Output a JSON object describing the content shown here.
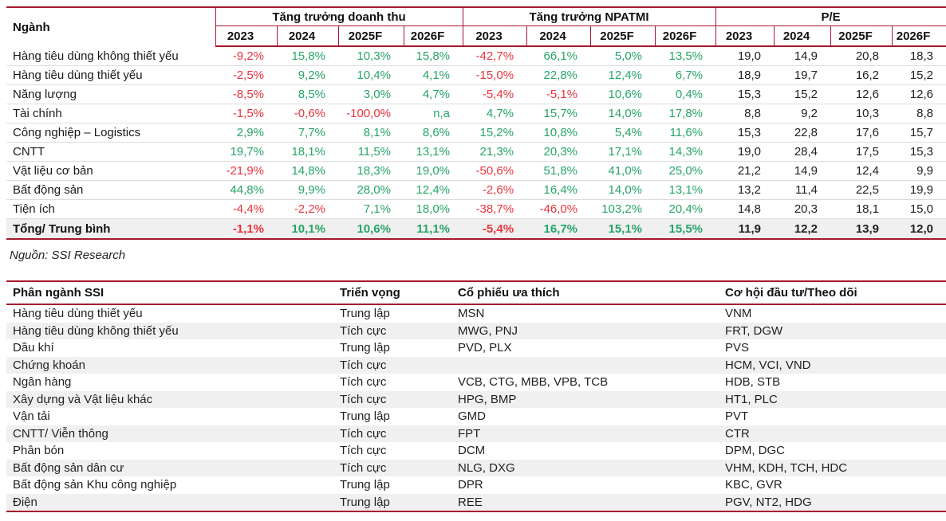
{
  "colors": {
    "border_red": "#a6192e",
    "positive_green": "#27a567",
    "negative_red": "#e8353d",
    "stripe_gray": "#f0f0f0"
  },
  "source_note": "Nguồn: SSI Research",
  "sector_table": {
    "first_col_header": "Ngành",
    "groups": [
      "Tăng trưởng doanh thu",
      "Tăng trưởng NPATMI",
      "P/E"
    ],
    "years": [
      "2023",
      "2024",
      "2025F",
      "2026F"
    ],
    "rows": [
      {
        "name": "Hàng tiêu dùng không thiết yếu",
        "rev": [
          "-9,2%",
          "15,8%",
          "10,3%",
          "15,8%"
        ],
        "npatmi": [
          "-42,7%",
          "66,1%",
          "5,0%",
          "13,5%"
        ],
        "pe": [
          "19,0",
          "14,9",
          "20,8",
          "18,3"
        ]
      },
      {
        "name": "Hàng tiêu dùng thiết yếu",
        "rev": [
          "-2,5%",
          "9,2%",
          "10,4%",
          "4,1%"
        ],
        "npatmi": [
          "-15,0%",
          "22,8%",
          "12,4%",
          "6,7%"
        ],
        "pe": [
          "18,9",
          "19,7",
          "16,2",
          "15,2"
        ]
      },
      {
        "name": "Năng lượng",
        "rev": [
          "-8,5%",
          "8,5%",
          "3,0%",
          "4,7%"
        ],
        "npatmi": [
          "-5,4%",
          "-5,1%",
          "10,6%",
          "0,4%"
        ],
        "pe": [
          "15,3",
          "15,2",
          "12,6",
          "12,6"
        ]
      },
      {
        "name": "Tài chính",
        "rev": [
          "-1,5%",
          "-0,6%",
          "-100,0%",
          "n,a"
        ],
        "npatmi": [
          "4,7%",
          "15,7%",
          "14,0%",
          "17,8%"
        ],
        "pe": [
          "8,8",
          "9,2",
          "10,3",
          "8,8"
        ]
      },
      {
        "name": "Công nghiệp – Logistics",
        "rev": [
          "2,9%",
          "7,7%",
          "8,1%",
          "8,6%"
        ],
        "npatmi": [
          "15,2%",
          "10,8%",
          "5,4%",
          "11,6%"
        ],
        "pe": [
          "15,3",
          "22,8",
          "17,6",
          "15,7"
        ]
      },
      {
        "name": "CNTT",
        "rev": [
          "19,7%",
          "18,1%",
          "11,5%",
          "13,1%"
        ],
        "npatmi": [
          "21,3%",
          "20,3%",
          "17,1%",
          "14,3%"
        ],
        "pe": [
          "19,0",
          "28,4",
          "17,5",
          "15,3"
        ]
      },
      {
        "name": "Vật liệu cơ bản",
        "rev": [
          "-21,9%",
          "14,8%",
          "18,3%",
          "19,0%"
        ],
        "npatmi": [
          "-50,6%",
          "51,8%",
          "41,0%",
          "25,0%"
        ],
        "pe": [
          "21,2",
          "14,9",
          "12,4",
          "9,9"
        ]
      },
      {
        "name": "Bất động sản",
        "rev": [
          "44,8%",
          "9,9%",
          "28,0%",
          "12,4%"
        ],
        "npatmi": [
          "-2,6%",
          "16,4%",
          "14,0%",
          "13,1%"
        ],
        "pe": [
          "13,2",
          "11,4",
          "22,5",
          "19,9"
        ]
      },
      {
        "name": "Tiện ích",
        "rev": [
          "-4,4%",
          "-2,2%",
          "7,1%",
          "18,0%"
        ],
        "npatmi": [
          "-38,7%",
          "-46,0%",
          "103,2%",
          "20,4%"
        ],
        "pe": [
          "14,8",
          "20,3",
          "18,1",
          "15,0"
        ]
      }
    ],
    "total_row": {
      "name": "Tổng/ Trung bình",
      "rev": [
        "-1,1%",
        "10,1%",
        "10,6%",
        "11,1%"
      ],
      "npatmi": [
        "-5,4%",
        "16,7%",
        "15,1%",
        "15,5%"
      ],
      "pe": [
        "11,9",
        "12,2",
        "13,9",
        "12,0"
      ]
    }
  },
  "stock_table": {
    "headers": [
      "Phân ngành SSI",
      "Triển vọng",
      "Cổ phiếu ưa thích",
      "Cơ hội đầu tư/Theo dõi"
    ],
    "rows": [
      {
        "sector": "Hàng tiêu dùng thiết yếu",
        "outlook": "Trung lập",
        "favorites": "MSN",
        "watch": "VNM"
      },
      {
        "sector": "Hàng tiêu dùng không thiết yếu",
        "outlook": "Tích cực",
        "favorites": "MWG, PNJ",
        "watch": "FRT, DGW"
      },
      {
        "sector": "Dầu khí",
        "outlook": "Trung lập",
        "favorites": "PVD, PLX",
        "watch": "PVS"
      },
      {
        "sector": "Chứng khoán",
        "outlook": "Tích cực",
        "favorites": "",
        "watch": "HCM, VCI, VND"
      },
      {
        "sector": "Ngân hàng",
        "outlook": "Tích cực",
        "favorites": "VCB, CTG, MBB, VPB, TCB",
        "watch": "HDB, STB"
      },
      {
        "sector": "Xây dựng và Vật liệu khác",
        "outlook": "Tích cực",
        "favorites": "HPG, BMP",
        "watch": "HT1, PLC"
      },
      {
        "sector": "Vận tải",
        "outlook": "Trung lập",
        "favorites": "GMD",
        "watch": "PVT"
      },
      {
        "sector": "CNTT/ Viễn thông",
        "outlook": "Tích cực",
        "favorites": "FPT",
        "watch": "CTR"
      },
      {
        "sector": "Phân bón",
        "outlook": "Tích cực",
        "favorites": "DCM",
        "watch": "DPM, DGC"
      },
      {
        "sector": "Bất động sản dân cư",
        "outlook": "Tích cực",
        "favorites": "NLG, DXG",
        "watch": "VHM, KDH, TCH, HDC"
      },
      {
        "sector": "Bất động sản Khu công nghiệp",
        "outlook": "Trung lập",
        "favorites": "DPR",
        "watch": "KBC, GVR"
      },
      {
        "sector": "Điện",
        "outlook": "Trung lập",
        "favorites": "REE",
        "watch": "PGV, NT2, HDG"
      }
    ]
  }
}
